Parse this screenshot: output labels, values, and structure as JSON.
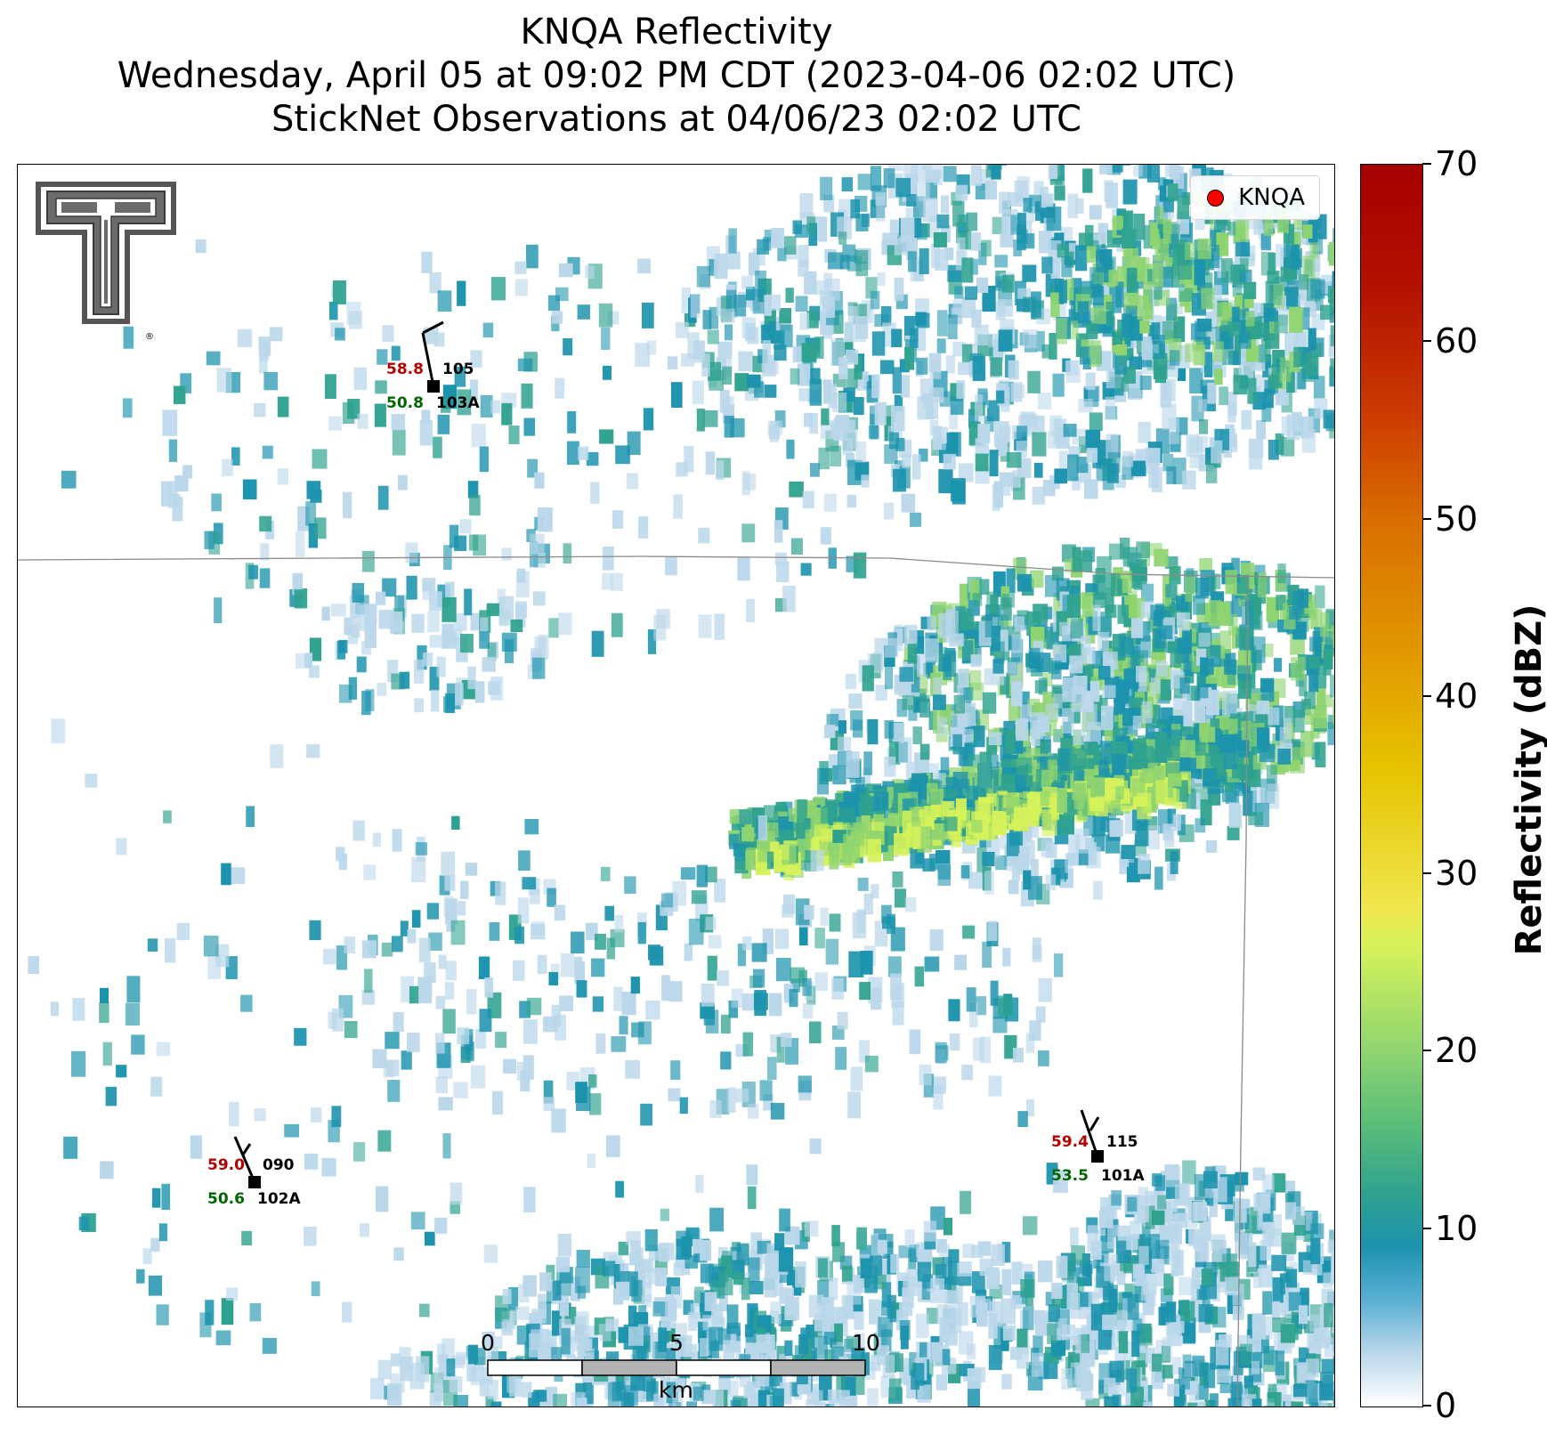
{
  "header": {
    "title_line1": "KNQA Reflectivity",
    "title_line2": "Wednesday, April 05 at 09:02 PM CDT (2023-04-06 02:02 UTC)",
    "title_line3": "StickNet Observations at 04/06/23 02:02 UTC"
  },
  "legend": {
    "label": "KNQA",
    "marker_color": "#ff0000"
  },
  "logo": {
    "name": "texas-tech-double-t-logo",
    "mark": "®"
  },
  "stations": [
    {
      "id": "103A",
      "temp": "58.8",
      "dewpoint": "50.8",
      "wind_dir": "105"
    },
    {
      "id": "102A",
      "temp": "59.0",
      "dewpoint": "50.6",
      "wind_dir": "090"
    },
    {
      "id": "101A",
      "temp": "59.4",
      "dewpoint": "53.5",
      "wind_dir": "115"
    }
  ],
  "scale_bar": {
    "ticks": [
      "0",
      "5",
      "10"
    ],
    "unit": "km"
  },
  "colorbar": {
    "label": "Reflectivity (dBZ)",
    "ticks": [
      "0",
      "10",
      "20",
      "30",
      "40",
      "50",
      "60",
      "70"
    ],
    "range": [
      0,
      70
    ]
  },
  "colors": {
    "light_blue": "#bad7ea",
    "teal": "#1c93ad",
    "green_teal": "#2fa28f",
    "light_green": "#8fd470",
    "yellow_green": "#d6f25a"
  }
}
